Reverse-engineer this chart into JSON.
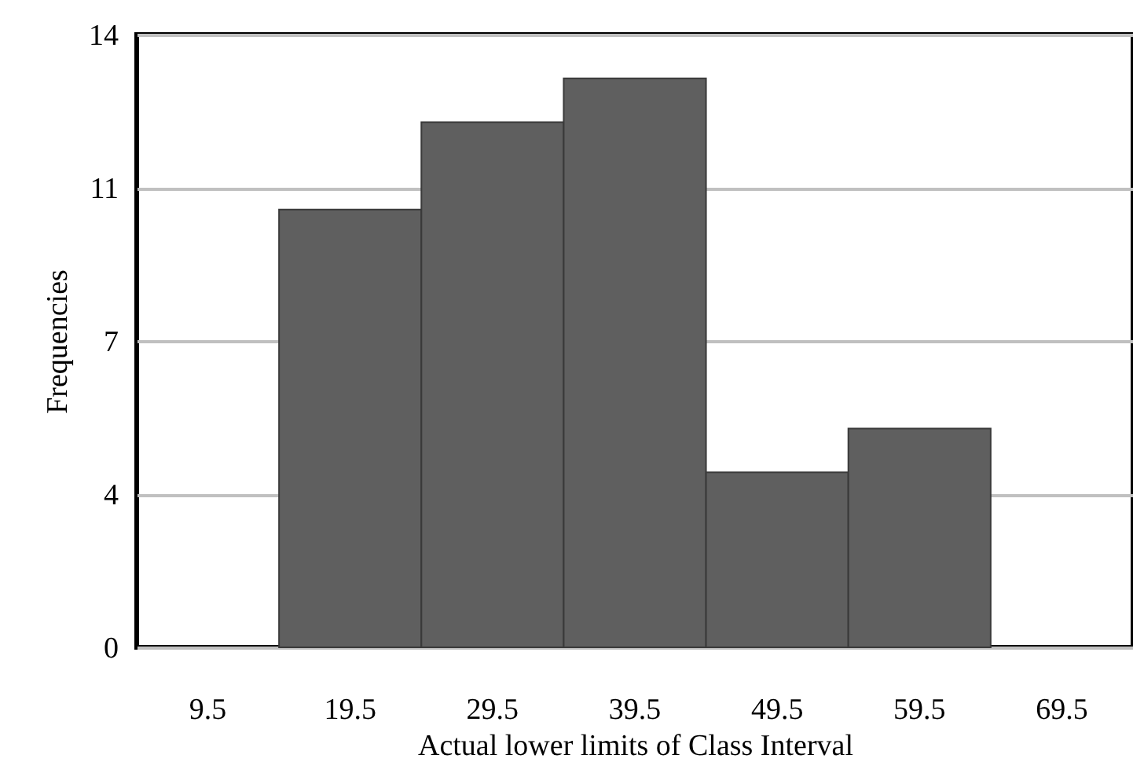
{
  "chart_data": {
    "type": "bar",
    "xlabel": "Actual lower limits of Class Interval",
    "ylabel": "Frequencies",
    "categories": [
      "9.5",
      "19.5",
      "29.5",
      "39.5",
      "49.5",
      "59.5",
      "69.5"
    ],
    "values": [
      0,
      10,
      12,
      13,
      4,
      5,
      0
    ],
    "color": "#5f5f5f",
    "ylim": [
      0,
      14
    ],
    "yticks": [
      0,
      {
        "value": 3.5,
        "label": "4"
      },
      7,
      {
        "value": 10.5,
        "label": "11"
      },
      14
    ],
    "grid": "y"
  }
}
